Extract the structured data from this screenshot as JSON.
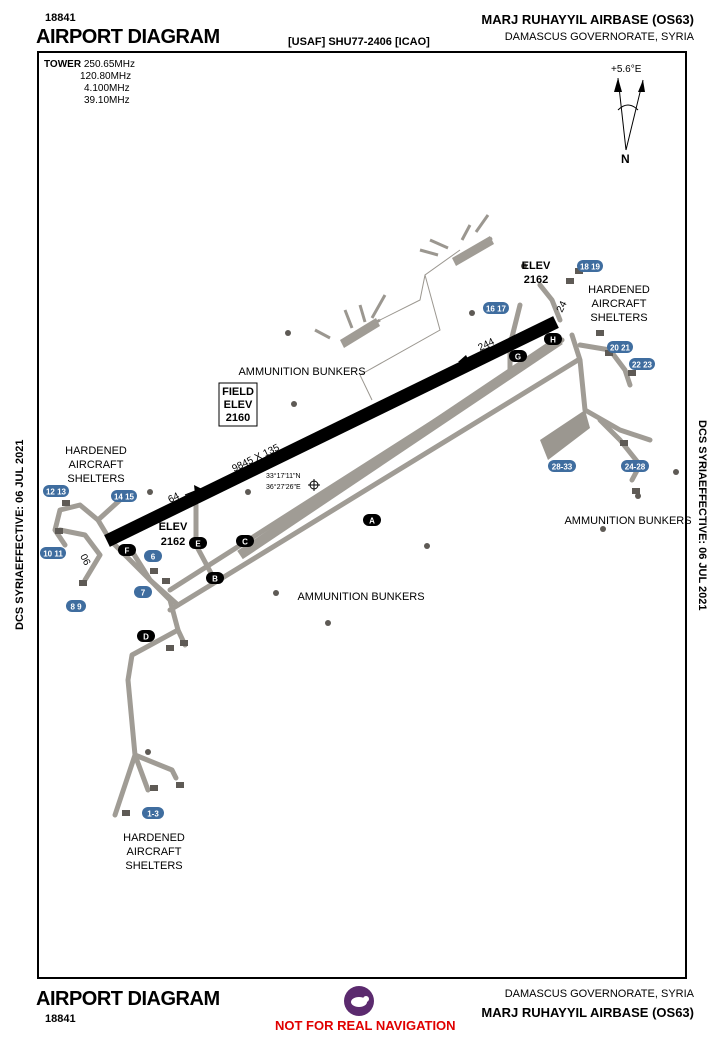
{
  "header": {
    "chart_number": "18841",
    "title": "AIRPORT DIAGRAM",
    "usaf_code": "[USAF] SHU77-2406 [ICAO]",
    "base_name": "MARJ RUHAYYIL AIRBASE (OS63)",
    "region": "DAMASCUS GOVERNORATE, SYRIA"
  },
  "frequencies": {
    "label": "TOWER",
    "values": [
      "250.65MHz",
      "120.80MHz",
      "4.100MHz",
      "39.10MHz"
    ]
  },
  "side_text": {
    "left": "DCS SYRIAEFFECTIVE: 06 JUL 2021",
    "right": "DCS SYRIAEFFECTIVE: 06 JUL 2021"
  },
  "compass": {
    "variation": "+5.6°E",
    "north": "N"
  },
  "runway": {
    "dimensions": "9845 X 135",
    "end_left": "06",
    "end_right": "24",
    "heading_left": "64",
    "heading_right": "244"
  },
  "field_elev": {
    "label1": "FIELD",
    "label2": "ELEV",
    "value": "2160"
  },
  "elevations": [
    {
      "label": "ELEV",
      "value": "2162"
    },
    {
      "label": "ELEV",
      "value": "2162"
    }
  ],
  "coordinates": {
    "lat": "33°17'11\"N",
    "lon": "36°27'26\"E"
  },
  "taxiways": [
    "A",
    "B",
    "C",
    "D",
    "E",
    "F",
    "G",
    "H"
  ],
  "shelter_badges": [
    "12 13",
    "14 15",
    "10 11",
    "6",
    "7",
    "8 9",
    "16 17",
    "18 19",
    "20 21",
    "22 23",
    "24-28",
    "28-33",
    "1-3"
  ],
  "area_labels": {
    "hardened_left": [
      "HARDENED",
      "AIRCRAFT",
      "SHELTERS"
    ],
    "hardened_right": [
      "HARDENED",
      "AIRCRAFT",
      "SHELTERS"
    ],
    "hardened_bottom": [
      "HARDENED",
      "AIRCRAFT",
      "SHELTERS"
    ],
    "ammo_top": "AMMUNITION BUNKERS",
    "ammo_center": "AMMUNITION BUNKERS",
    "ammo_right": "AMMUNITION BUNKERS"
  },
  "footer": {
    "title": "AIRPORT DIAGRAM",
    "chart_number": "18841",
    "region": "DAMASCUS GOVERNORATE, SYRIA",
    "base_name": "MARJ RUHAYYIL AIRBASE (OS63)",
    "warning": "NOT FOR REAL NAVIGATION"
  },
  "colors": {
    "taxiway": "#a09c95",
    "apron": "#9b9790",
    "runway": "#000000",
    "badge": "#3f6d9f",
    "bunker": "#5e5a55",
    "warning": "#e00000"
  }
}
